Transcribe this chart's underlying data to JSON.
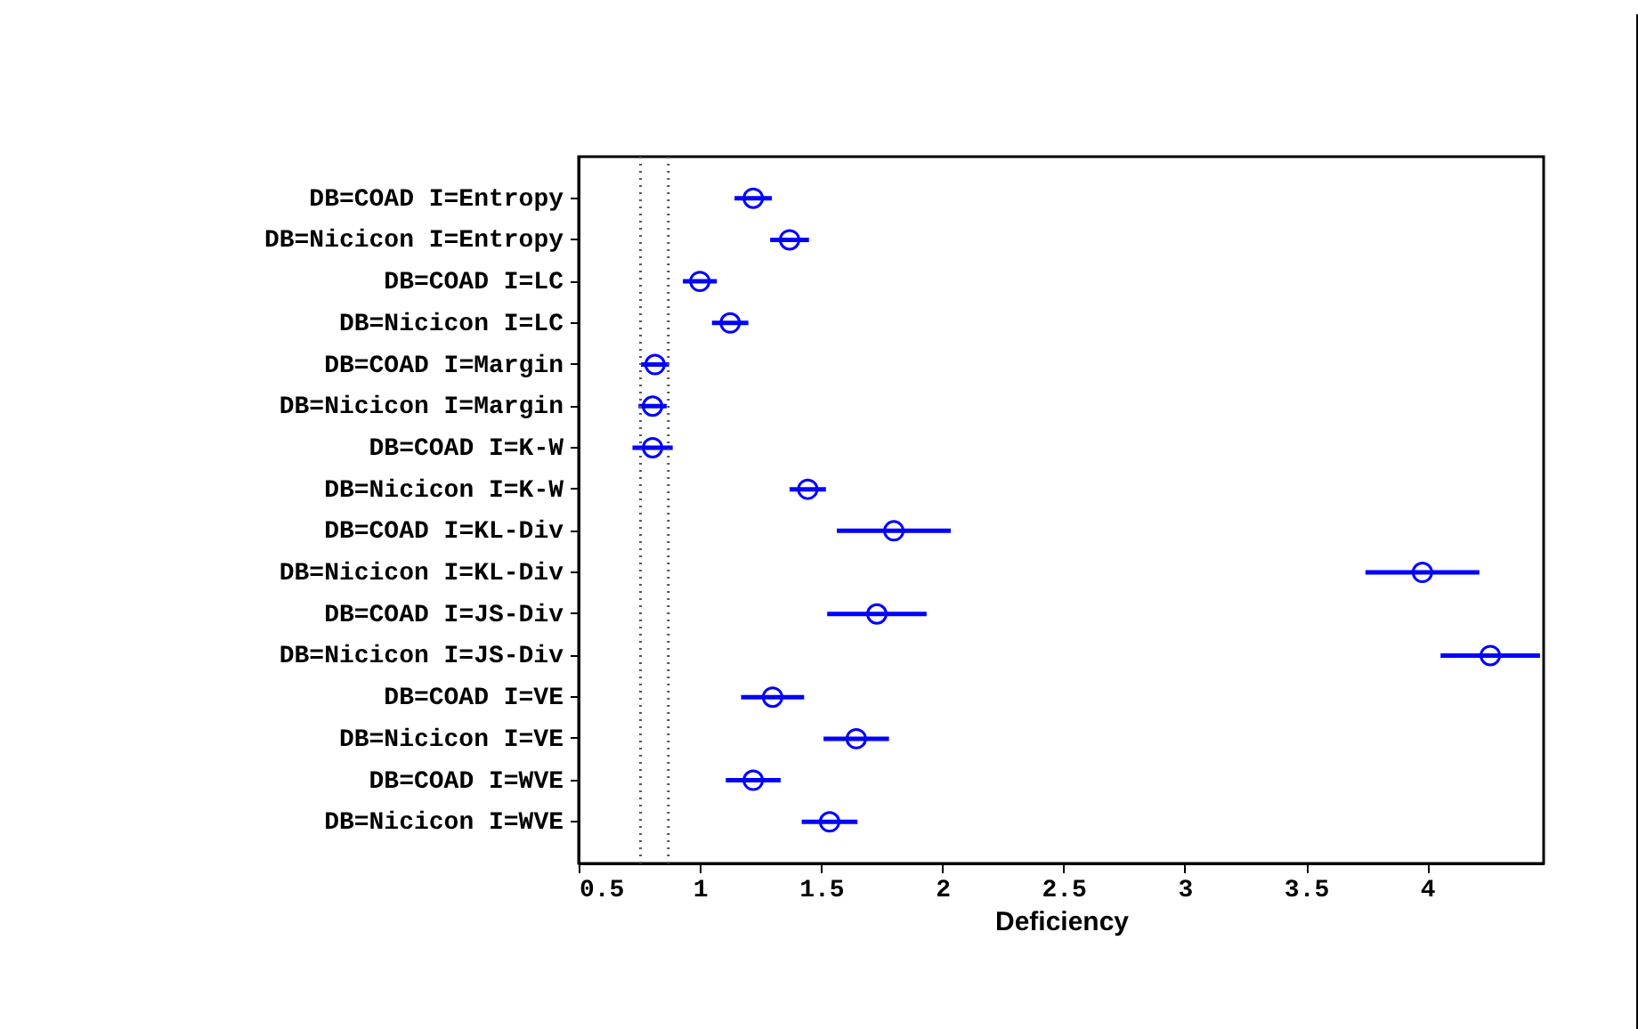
{
  "chart_data": {
    "type": "scatter",
    "orientation": "horizontal",
    "xlabel": "Deficiency",
    "marker": "circle",
    "grid": false,
    "categories": [
      "DB=COAD I=Entropy",
      "DB=Nicicon I=Entropy",
      "DB=COAD I=LC",
      "DB=Nicicon I=LC",
      "DB=COAD I=Margin",
      "DB=Nicicon I=Margin",
      "DB=COAD I=K-W",
      "DB=Nicicon I=K-W",
      "DB=COAD I=KL-Div",
      "DB=Nicicon I=KL-Div",
      "DB=COAD I=JS-Div",
      "DB=Nicicon I=JS-Div",
      "DB=COAD I=VE",
      "DB=Nicicon I=VE",
      "DB=COAD I=WVE",
      "DB=Nicicon I=WVE"
    ],
    "series": [
      {
        "color": "#0000ff",
        "values": [
          1.22,
          1.37,
          1.0,
          1.125,
          0.815,
          0.805,
          0.805,
          1.445,
          1.8,
          3.98,
          1.73,
          4.26,
          1.3,
          1.645,
          1.22,
          1.535
        ],
        "errors": [
          0.077,
          0.08,
          0.07,
          0.075,
          0.058,
          0.058,
          0.083,
          0.075,
          0.235,
          0.235,
          0.205,
          0.205,
          0.13,
          0.135,
          0.113,
          0.115
        ]
      }
    ],
    "xlim": [
      0.5,
      4.48
    ],
    "xticks": [
      0.5,
      1,
      1.5,
      2,
      2.5,
      3,
      3.5,
      4
    ],
    "ref_lines": [
      {
        "axis": "x",
        "value": 0.755,
        "color": "#555555",
        "line_style": "dotted"
      },
      {
        "axis": "x",
        "value": 0.87,
        "color": "#555555",
        "line_style": "dotted"
      }
    ]
  }
}
